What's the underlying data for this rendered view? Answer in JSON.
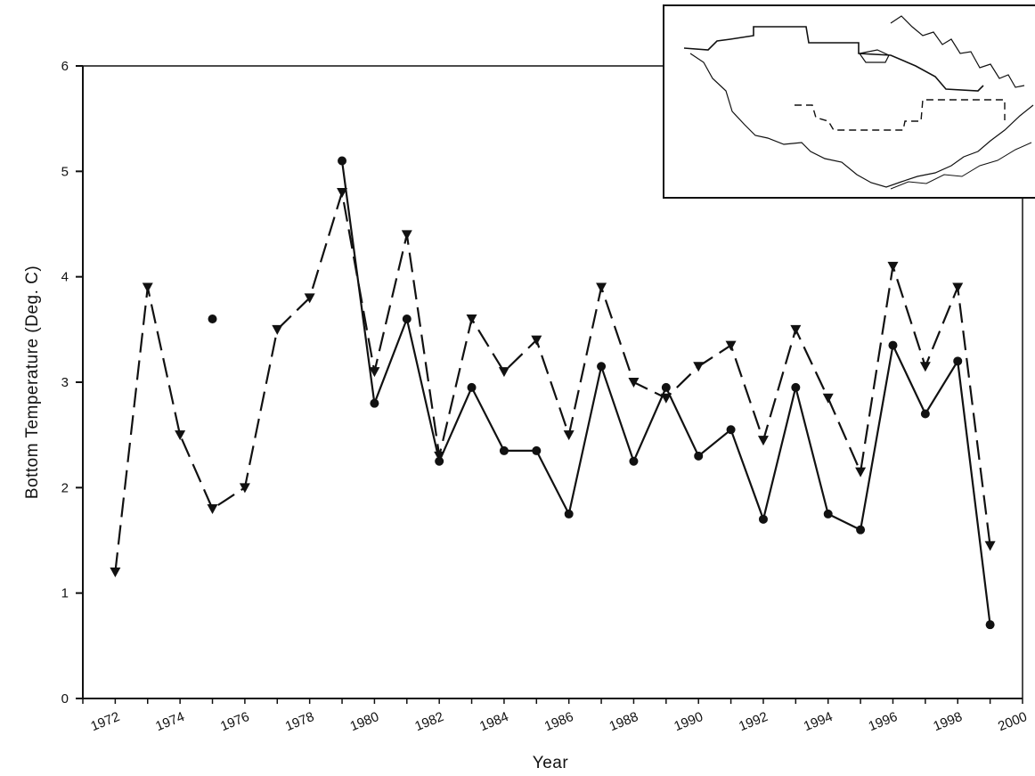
{
  "chart_data": {
    "type": "line",
    "title": "",
    "xlabel": "Year",
    "ylabel": "Bottom Temperature (Deg. C)",
    "xlim": [
      1971,
      2000
    ],
    "ylim": [
      0,
      6
    ],
    "x_ticks": [
      1972,
      1974,
      1976,
      1978,
      1980,
      1982,
      1984,
      1986,
      1988,
      1990,
      1992,
      1994,
      1996,
      1998,
      2000
    ],
    "y_ticks": [
      0,
      1,
      2,
      3,
      4,
      5,
      6
    ],
    "grid": false,
    "legend": "none",
    "inset": "map",
    "series": [
      {
        "style": "dashed",
        "marker": "triangle-down",
        "color": "#111111",
        "points": [
          {
            "x": 1972,
            "y": 1.2
          },
          {
            "x": 1973,
            "y": 3.9
          },
          {
            "x": 1974,
            "y": 2.5
          },
          {
            "x": 1975,
            "y": 1.8
          },
          {
            "x": 1976,
            "y": 2.0
          },
          {
            "x": 1977,
            "y": 3.5
          },
          {
            "x": 1978,
            "y": 3.8
          },
          {
            "x": 1979,
            "y": 4.8
          },
          {
            "x": 1980,
            "y": 3.1
          },
          {
            "x": 1981,
            "y": 4.4
          },
          {
            "x": 1982,
            "y": 2.3
          },
          {
            "x": 1983,
            "y": 3.6
          },
          {
            "x": 1984,
            "y": 3.1
          },
          {
            "x": 1985,
            "y": 3.4
          },
          {
            "x": 1986,
            "y": 2.5
          },
          {
            "x": 1987,
            "y": 3.9
          },
          {
            "x": 1988,
            "y": 3.0
          },
          {
            "x": 1989,
            "y": 2.85
          },
          {
            "x": 1990,
            "y": 3.15
          },
          {
            "x": 1991,
            "y": 3.35
          },
          {
            "x": 1992,
            "y": 2.45
          },
          {
            "x": 1993,
            "y": 3.5
          },
          {
            "x": 1994,
            "y": 2.85
          },
          {
            "x": 1995,
            "y": 2.15
          },
          {
            "x": 1996,
            "y": 4.1
          },
          {
            "x": 1997,
            "y": 3.15
          },
          {
            "x": 1998,
            "y": 3.9
          },
          {
            "x": 1999,
            "y": 1.45
          }
        ]
      },
      {
        "style": "solid",
        "marker": "circle",
        "color": "#111111",
        "isolated_points": [
          {
            "x": 1975,
            "y": 3.6
          }
        ],
        "points": [
          {
            "x": 1979,
            "y": 5.1
          },
          {
            "x": 1980,
            "y": 2.8
          },
          {
            "x": 1981,
            "y": 3.6
          },
          {
            "x": 1982,
            "y": 2.25
          },
          {
            "x": 1983,
            "y": 2.95
          },
          {
            "x": 1984,
            "y": 2.35
          },
          {
            "x": 1985,
            "y": 2.35
          },
          {
            "x": 1986,
            "y": 1.75
          },
          {
            "x": 1987,
            "y": 3.15
          },
          {
            "x": 1988,
            "y": 2.25
          },
          {
            "x": 1989,
            "y": 2.95
          },
          {
            "x": 1990,
            "y": 2.3
          },
          {
            "x": 1991,
            "y": 2.55
          },
          {
            "x": 1992,
            "y": 1.7
          },
          {
            "x": 1993,
            "y": 2.95
          },
          {
            "x": 1994,
            "y": 1.75
          },
          {
            "x": 1995,
            "y": 1.6
          },
          {
            "x": 1996,
            "y": 3.35
          },
          {
            "x": 1997,
            "y": 2.7
          },
          {
            "x": 1998,
            "y": 3.2
          },
          {
            "x": 1999,
            "y": 0.7
          }
        ]
      }
    ]
  }
}
